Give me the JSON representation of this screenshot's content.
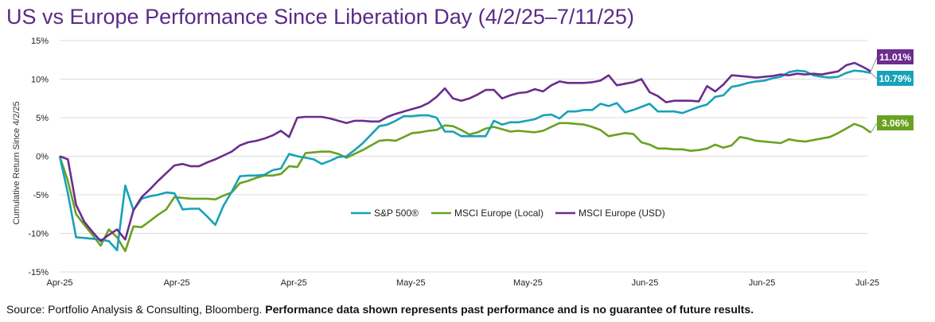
{
  "title": "US vs Europe Performance Since Liberation Day (4/2/25–7/11/25)",
  "source": {
    "prefix": "Source: Portfolio Analysis & Consulting, Bloomberg.",
    "disclaimer": "Performance data shown represents past performance and is no guarantee of future results."
  },
  "chart_data": {
    "type": "line",
    "ylabel": "Cumulative  Return Since 4/2/25",
    "ylim": [
      -15,
      15
    ],
    "yticks": [
      -15,
      -10,
      -5,
      0,
      5,
      10,
      15
    ],
    "ytick_labels": [
      "-15%",
      "-10%",
      "-5%",
      "0%",
      "5%",
      "10%",
      "15%"
    ],
    "xlim": [
      0,
      69
    ],
    "xticks": [
      0,
      10,
      20,
      30,
      40,
      50,
      60,
      69
    ],
    "xtick_labels": [
      "Apr-25",
      "Apr-25",
      "Apr-25",
      "May-25",
      "May-25",
      "Jun-25",
      "Jun-25",
      "Jul-25"
    ],
    "grid": "horizontal",
    "legend_position": "center",
    "series": [
      {
        "name": "S&P 500®",
        "color": "#17a2b8",
        "end_label": "10.79%",
        "values": [
          0,
          -4.8,
          -10.5,
          -10.6,
          -10.7,
          -10.8,
          -11.0,
          -12.2,
          -3.8,
          -7.0,
          -5.5,
          -5.2,
          -5.0,
          -4.7,
          -4.8,
          -6.9,
          -6.8,
          -6.8,
          -7.8,
          -8.9,
          -6.4,
          -4.6,
          -2.6,
          -2.5,
          -2.5,
          -2.4,
          -1.8,
          -1.6,
          0.3,
          0.0,
          -0.2,
          -0.4,
          -1.0,
          -0.6,
          -0.1,
          0.0,
          0.8,
          1.7,
          2.8,
          3.9,
          4.1,
          4.6,
          5.2,
          5.2,
          5.3,
          5.3,
          5.0,
          3.2,
          3.2,
          2.6,
          2.6,
          2.6,
          2.6,
          4.6,
          4.1,
          4.4,
          4.4,
          4.6,
          4.8,
          5.3,
          5.4,
          4.9,
          5.8,
          5.8,
          6.0,
          6.0,
          6.8,
          6.5,
          6.9,
          5.7,
          6.0,
          6.4,
          6.8,
          5.8,
          5.8,
          5.8,
          5.6,
          6.0,
          6.4,
          6.7,
          7.7,
          7.9,
          9.0,
          9.2,
          9.5,
          9.7,
          9.8,
          10.1,
          10.3,
          10.9,
          11.1,
          11.0,
          10.5,
          10.3,
          10.2,
          10.3,
          10.8,
          11.1,
          11.0,
          10.8
        ],
        "x_step": 0.7
      },
      {
        "name": "MSCI Europe (Local)",
        "color": "#6aa121",
        "end_label": "3.06%",
        "values": [
          0,
          -3.2,
          -7.5,
          -8.9,
          -10.2,
          -11.6,
          -9.5,
          -10.5,
          -12.3,
          -9.1,
          -9.2,
          -8.4,
          -7.6,
          -6.9,
          -5.3,
          -5.4,
          -5.5,
          -5.5,
          -5.5,
          -5.6,
          -5.1,
          -4.7,
          -3.5,
          -3.2,
          -2.8,
          -2.5,
          -2.5,
          -2.3,
          -1.3,
          -1.4,
          0.4,
          0.5,
          0.6,
          0.6,
          0.3,
          -0.2,
          0.3,
          0.8,
          1.4,
          2.0,
          2.1,
          2.0,
          2.5,
          3.0,
          3.1,
          3.3,
          3.4,
          4.0,
          3.9,
          3.4,
          2.8,
          3.1,
          3.6,
          3.8,
          3.5,
          3.2,
          3.3,
          3.2,
          3.1,
          3.3,
          3.8,
          4.3,
          4.3,
          4.2,
          4.1,
          3.8,
          3.4,
          2.6,
          2.8,
          3.0,
          2.9,
          1.8,
          1.5,
          1.0,
          1.0,
          0.9,
          0.9,
          0.7,
          0.8,
          1.0,
          1.5,
          1.1,
          1.4,
          2.5,
          2.3,
          2.0,
          1.9,
          1.8,
          1.7,
          2.2,
          2.0,
          1.9,
          2.1,
          2.3,
          2.5,
          3.0,
          3.6,
          4.2,
          3.8,
          3.06
        ],
        "x_step": 0.7
      },
      {
        "name": "MSCI Europe (USD)",
        "color": "#6b2d8e",
        "end_label": "11.01%",
        "values": [
          0,
          -0.4,
          -6.3,
          -8.5,
          -9.8,
          -11.0,
          -10.2,
          -9.5,
          -10.8,
          -7.0,
          -5.3,
          -4.3,
          -3.2,
          -2.2,
          -1.2,
          -1.0,
          -1.3,
          -1.3,
          -0.8,
          -0.4,
          0.1,
          0.6,
          1.4,
          1.8,
          2.0,
          2.3,
          2.7,
          3.3,
          2.5,
          5.0,
          5.1,
          5.1,
          5.1,
          4.9,
          4.6,
          4.3,
          4.6,
          4.6,
          4.5,
          4.5,
          5.1,
          5.5,
          5.8,
          6.1,
          6.4,
          6.9,
          7.7,
          8.8,
          7.5,
          7.2,
          7.5,
          8.0,
          8.6,
          8.6,
          7.5,
          7.9,
          8.2,
          8.3,
          8.7,
          8.4,
          9.2,
          9.7,
          9.5,
          9.5,
          9.5,
          9.6,
          9.8,
          10.5,
          9.2,
          9.4,
          9.6,
          10.0,
          8.3,
          7.8,
          7.0,
          7.2,
          7.2,
          7.2,
          7.1,
          9.1,
          8.4,
          9.3,
          10.5,
          10.4,
          10.3,
          10.2,
          10.3,
          10.4,
          10.6,
          10.5,
          10.7,
          10.6,
          10.7,
          10.6,
          10.8,
          11.0,
          11.8,
          12.1,
          11.6,
          11.01
        ],
        "x_step": 0.7
      }
    ]
  }
}
